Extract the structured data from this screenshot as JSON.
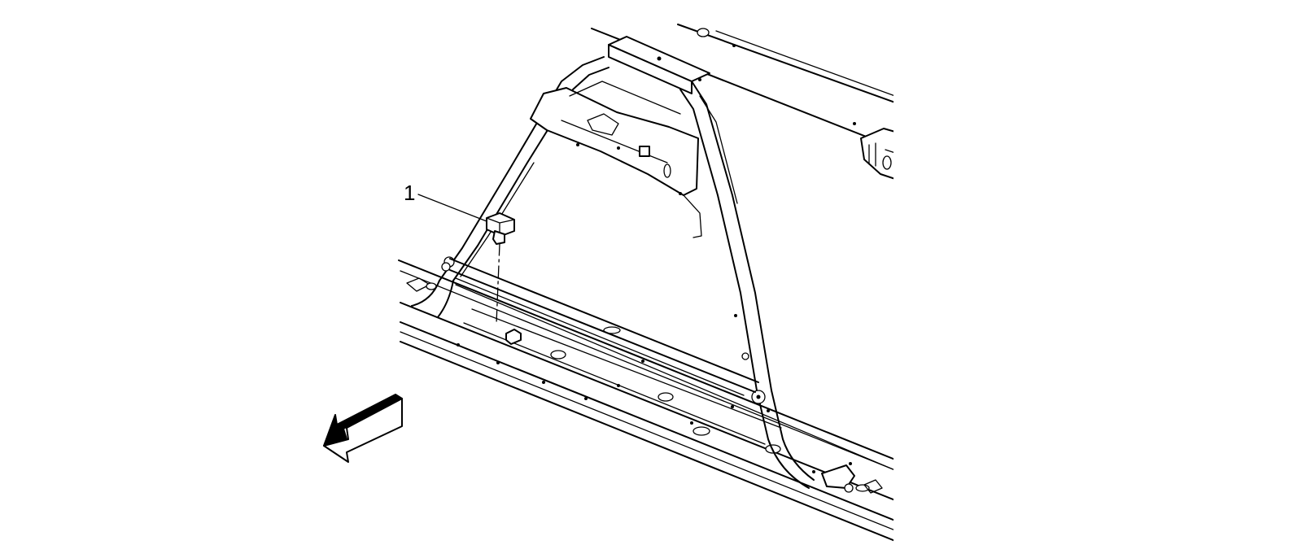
{
  "diagram": {
    "callouts": [
      {
        "label": "1"
      }
    ],
    "colors": {
      "line": "#000000",
      "background": "#ffffff"
    },
    "icons": [
      "direction-arrow-icon"
    ]
  }
}
